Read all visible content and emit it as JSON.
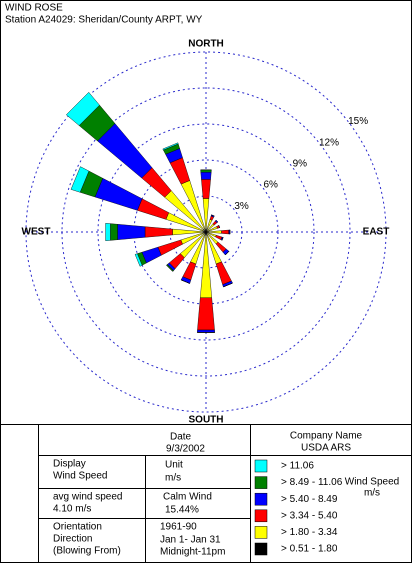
{
  "header": {
    "title": "WIND ROSE",
    "station": "Station A24029: Sheridan/County ARPT, WY"
  },
  "chart_data": {
    "type": "windrose",
    "categories": [
      "NORTH",
      null,
      null,
      null,
      "EAST",
      null,
      null,
      null,
      "SOUTH",
      null,
      null,
      null,
      "WEST",
      null,
      null,
      null
    ],
    "legend_title": [
      "Wind Speed",
      "m/s"
    ],
    "rlim": [
      0,
      15
    ],
    "rticks": [
      {
        "value": 3,
        "label": "3%"
      },
      {
        "value": 6,
        "label": "6%"
      },
      {
        "value": 9,
        "label": "9%"
      },
      {
        "value": 12,
        "label": "12%"
      },
      {
        "value": 15,
        "label": "15%"
      }
    ],
    "series": [
      {
        "name": "> 0.51 - 1.80",
        "color": "#000000",
        "values": [
          0.2,
          0.2,
          0.1,
          0.1,
          0.1,
          0.1,
          0.1,
          0.2,
          0.3,
          0.2,
          0.2,
          0.2,
          0.2,
          0.2,
          0.3,
          0.2
        ]
      },
      {
        "name": "> 1.80 - 3.34",
        "color": "#ffff00",
        "values": [
          2.6,
          0.9,
          0.8,
          0.9,
          1.2,
          0.8,
          1.2,
          2.6,
          5.2,
          2.6,
          2.6,
          2.0,
          2.6,
          3.3,
          4.2,
          4.3
        ]
      },
      {
        "name": "> 3.34 - 5.40",
        "color": "#ff0000",
        "values": [
          1.6,
          0.3,
          0.3,
          0.2,
          0.6,
          0.5,
          0.9,
          1.8,
          2.7,
          1.4,
          1.2,
          2.0,
          2.3,
          2.5,
          2.5,
          2.0
        ]
      },
      {
        "name": "> 5.40 - 8.49",
        "color": "#0000ff",
        "values": [
          0.6,
          0.1,
          0.1,
          0.0,
          0.1,
          0.1,
          0.3,
          0.2,
          0.2,
          0.3,
          0.2,
          1.4,
          2.3,
          3.7,
          4.8,
          0.8
        ]
      },
      {
        "name": "> 8.49 - 11.06",
        "color": "#008000",
        "values": [
          0.2,
          0.0,
          0.0,
          0.0,
          0.0,
          0.0,
          0.0,
          0.0,
          0.0,
          0.0,
          0.1,
          0.4,
          0.6,
          1.3,
          2.0,
          0.4
        ]
      },
      {
        "name": "> 11.06",
        "color": "#00ffff",
        "values": [
          0.0,
          0.0,
          0.0,
          0.0,
          0.0,
          0.0,
          0.0,
          0.0,
          0.0,
          0.0,
          0.0,
          0.2,
          0.4,
          0.8,
          1.4,
          0.1
        ]
      }
    ]
  },
  "info": {
    "date_label": "Date",
    "date": "9/3/2002",
    "company_label": "Company Name",
    "company": "USDA ARS",
    "display_label": [
      "Display",
      "Wind Speed"
    ],
    "unit_label": [
      "Unit",
      "m/s"
    ],
    "avg_label": [
      "avg wind speed",
      "4.10 m/s"
    ],
    "calm_label": [
      "Calm Wind",
      "15.44%"
    ],
    "orientation_label": [
      "Orientation",
      "Direction",
      "(Blowing From)"
    ],
    "period": [
      "1961-90",
      "Jan 1- Jan 31",
      "Midnight-11pm"
    ]
  }
}
